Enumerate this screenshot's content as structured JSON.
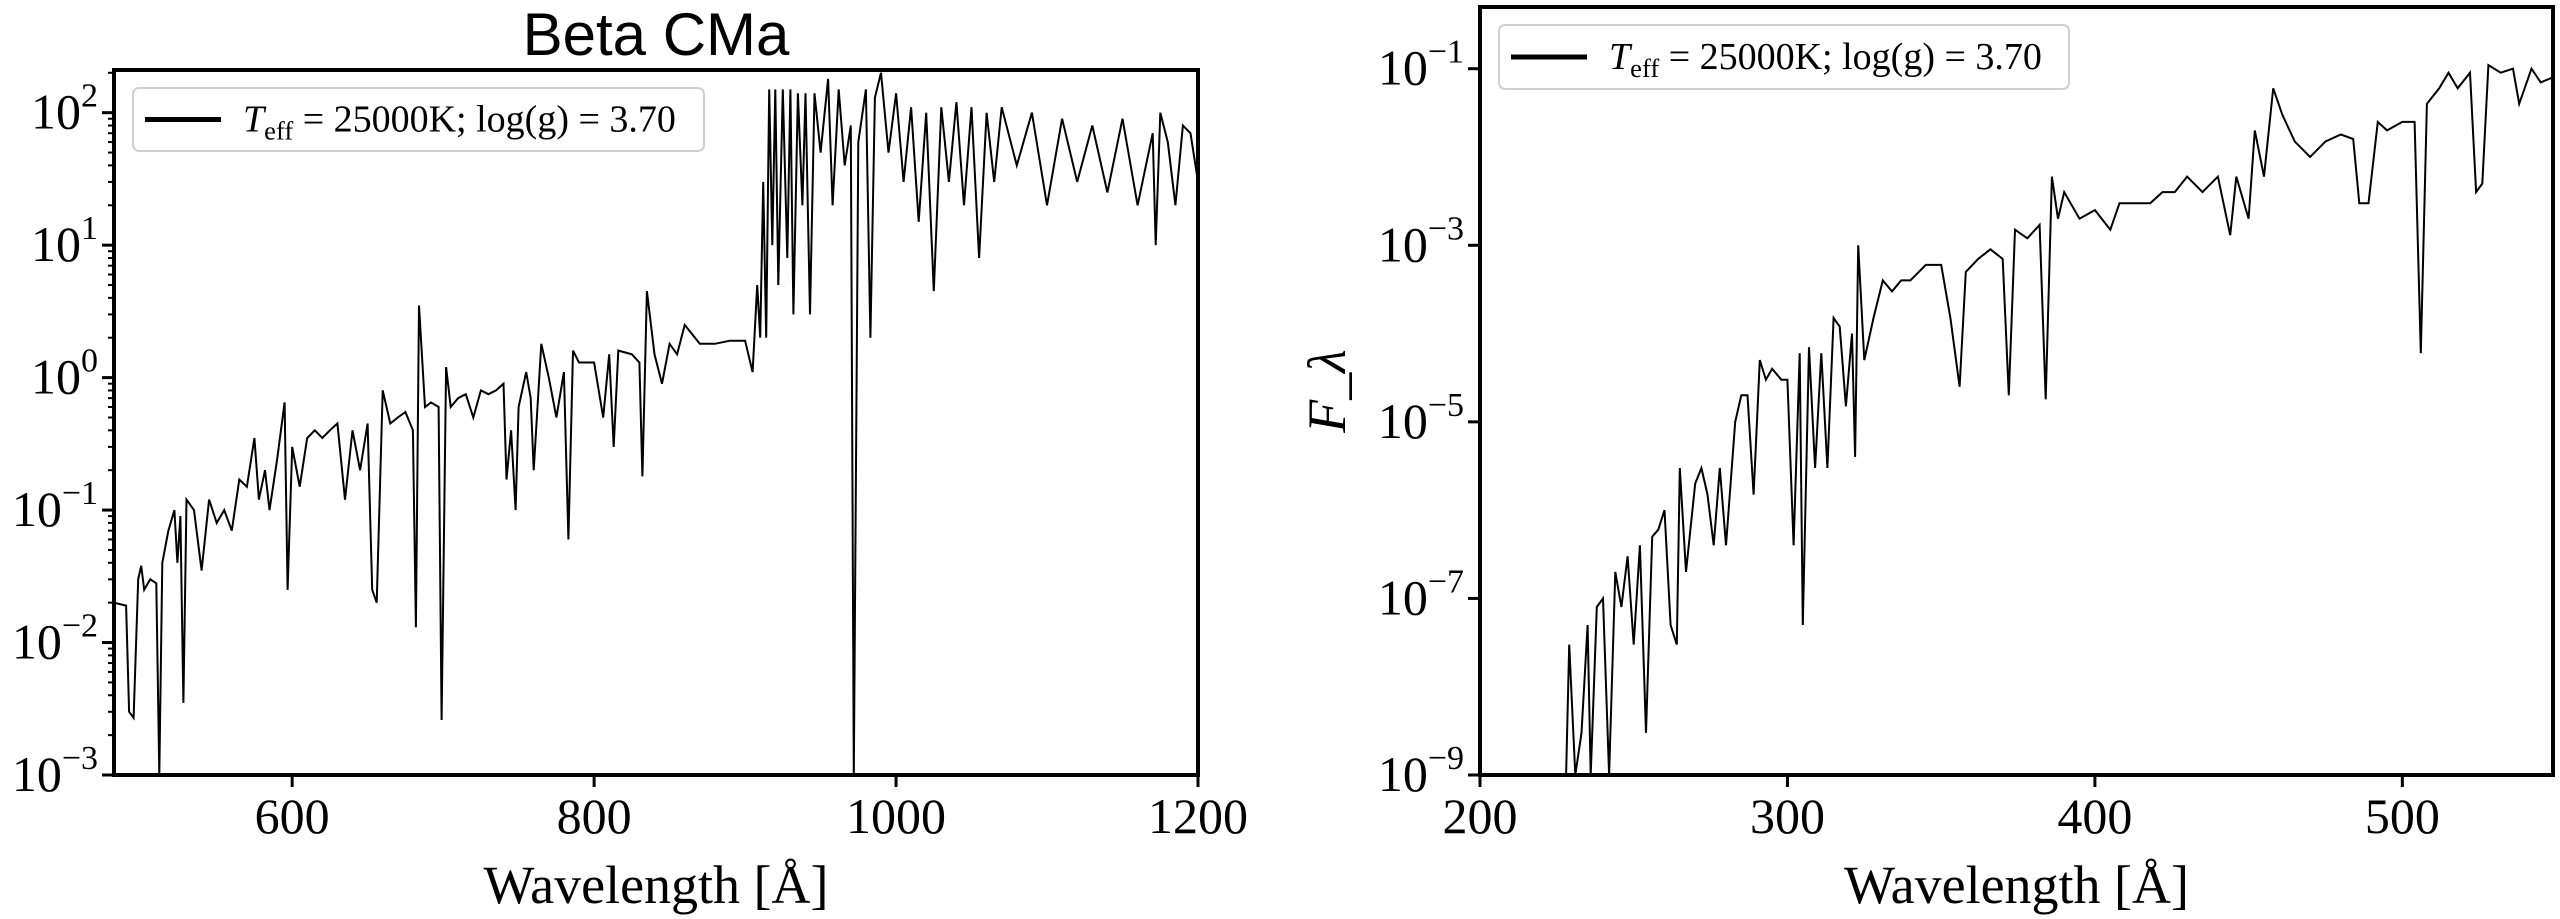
{
  "chart_data": [
    {
      "type": "line",
      "title": "Beta CMa",
      "xlabel": "Wavelength [Å]",
      "ylabel": "",
      "xscale": "linear",
      "yscale": "log",
      "xlim": [
        482,
        1200
      ],
      "ylim": [
        0.001,
        210
      ],
      "xticks": [
        600,
        800,
        1000,
        1200
      ],
      "yticks_exponents": [
        -3,
        -2,
        -1,
        0,
        1,
        2
      ],
      "grid": false,
      "legend_placement": "upper-left",
      "line_color": "#000000",
      "series": [
        {
          "name": "T_eff = 25000K;  log(g) = 3.70",
          "x": [
            482,
            490,
            492,
            495,
            498,
            500,
            502,
            506,
            510,
            512,
            514,
            518,
            522,
            524,
            526,
            528,
            530,
            535,
            540,
            545,
            550,
            555,
            560,
            565,
            570,
            575,
            578,
            582,
            585,
            590,
            595,
            597,
            600,
            605,
            610,
            615,
            620,
            625,
            630,
            635,
            640,
            645,
            650,
            653,
            656,
            660,
            665,
            670,
            675,
            680,
            682,
            684,
            688,
            692,
            697,
            699,
            702,
            705,
            710,
            715,
            720,
            725,
            730,
            735,
            740,
            742,
            745,
            748,
            750,
            755,
            758,
            760,
            765,
            770,
            775,
            780,
            783,
            786,
            790,
            800,
            806,
            810,
            813,
            816,
            825,
            830,
            832,
            835,
            840,
            845,
            850,
            855,
            860,
            870,
            880,
            890,
            900,
            905,
            908,
            910,
            912,
            914,
            916,
            918,
            920,
            922,
            925,
            928,
            930,
            932,
            935,
            938,
            940,
            943,
            946,
            950,
            955,
            958,
            962,
            966,
            970,
            972,
            975,
            980,
            983,
            986,
            990,
            995,
            1000,
            1005,
            1010,
            1015,
            1020,
            1025,
            1030,
            1035,
            1040,
            1045,
            1050,
            1055,
            1060,
            1065,
            1070,
            1080,
            1090,
            1100,
            1110,
            1120,
            1130,
            1140,
            1150,
            1160,
            1170,
            1172,
            1175,
            1180,
            1185,
            1190,
            1195,
            1200
          ],
          "y": [
            0.02,
            0.019,
            0.003,
            0.0027,
            0.03,
            0.038,
            0.025,
            0.03,
            0.028,
            0.001,
            0.04,
            0.07,
            0.1,
            0.04,
            0.09,
            0.0035,
            0.12,
            0.1,
            0.035,
            0.12,
            0.08,
            0.1,
            0.07,
            0.17,
            0.15,
            0.35,
            0.12,
            0.2,
            0.1,
            0.24,
            0.65,
            0.025,
            0.3,
            0.15,
            0.35,
            0.4,
            0.35,
            0.4,
            0.45,
            0.12,
            0.4,
            0.2,
            0.45,
            0.025,
            0.02,
            0.8,
            0.45,
            0.5,
            0.55,
            0.4,
            0.013,
            3.5,
            0.6,
            0.65,
            0.6,
            0.0026,
            1.2,
            0.6,
            0.7,
            0.75,
            0.5,
            0.8,
            0.75,
            0.8,
            0.9,
            0.17,
            0.4,
            0.1,
            0.6,
            1.1,
            0.7,
            0.2,
            1.8,
            1.0,
            0.5,
            1.1,
            0.06,
            1.6,
            1.3,
            1.3,
            0.5,
            1.5,
            0.3,
            1.6,
            1.5,
            1.3,
            0.18,
            4.5,
            1.5,
            0.9,
            1.8,
            1.5,
            2.5,
            1.8,
            1.8,
            1.9,
            1.9,
            1.1,
            5,
            2,
            30,
            2,
            150,
            10,
            150,
            5,
            150,
            8,
            150,
            3,
            140,
            20,
            140,
            3,
            140,
            50,
            180,
            20,
            150,
            40,
            80,
            0.001,
            60,
            150,
            2,
            130,
            200,
            50,
            140,
            30,
            110,
            15,
            100,
            4.5,
            110,
            30,
            120,
            20,
            110,
            8,
            100,
            30,
            110,
            40,
            100,
            20,
            90,
            30,
            80,
            25,
            90,
            20,
            70,
            10,
            100,
            60,
            20,
            80,
            70,
            30
          ]
        }
      ]
    },
    {
      "type": "line",
      "title": "",
      "xlabel": "Wavelength [Å]",
      "ylabel": "F_λ",
      "xscale": "linear",
      "yscale": "log",
      "xlim": [
        200,
        549
      ],
      "ylim": [
        1e-09,
        0.5
      ],
      "xticks": [
        200,
        300,
        400,
        500
      ],
      "yticks_exponents": [
        -9,
        -7,
        -5,
        -3,
        -1
      ],
      "grid": false,
      "legend_placement": "upper-left",
      "line_color": "#000000",
      "series": [
        {
          "name": "T_eff = 25000K;  log(g) = 3.70",
          "x": [
            228,
            229,
            231,
            233,
            235,
            236,
            238,
            240,
            242,
            244,
            246,
            248,
            250,
            252,
            254,
            256,
            258,
            260,
            262,
            264,
            265,
            267,
            270,
            272,
            274,
            276,
            278,
            280,
            283,
            285,
            287,
            289,
            291,
            293,
            295,
            298,
            300,
            302,
            304,
            305,
            307,
            309,
            311,
            313,
            315,
            317,
            319,
            321,
            322,
            323,
            325,
            328,
            331,
            334,
            337,
            340,
            345,
            350,
            353,
            356,
            358,
            362,
            366,
            370,
            372,
            374,
            378,
            382,
            384,
            386,
            388,
            390,
            395,
            400,
            405,
            408,
            412,
            418,
            422,
            426,
            430,
            435,
            440,
            444,
            446,
            450,
            452,
            455,
            458,
            461,
            465,
            470,
            475,
            480,
            484,
            486,
            489,
            492,
            495,
            500,
            504,
            506,
            508,
            512,
            515,
            518,
            522,
            524,
            526,
            528,
            532,
            536,
            538,
            542,
            545,
            549
          ],
          "y": [
            1e-09,
            3e-08,
            1e-09,
            3e-09,
            5e-08,
            1e-09,
            8e-08,
            1e-07,
            1e-09,
            2e-07,
            8e-08,
            3e-07,
            3e-08,
            4e-07,
            3e-09,
            5e-07,
            6e-07,
            1e-06,
            5e-08,
            3e-08,
            3e-06,
            2e-07,
            2e-06,
            3e-06,
            1.5e-06,
            4e-07,
            3e-06,
            4e-07,
            1e-05,
            2e-05,
            2e-05,
            1.5e-06,
            5e-05,
            3e-05,
            4e-05,
            3e-05,
            3e-05,
            4e-07,
            6e-05,
            5e-08,
            7e-05,
            3e-06,
            6e-05,
            3e-06,
            0.00015,
            0.00012,
            1.5e-05,
            0.0001,
            4e-06,
            0.001,
            5e-05,
            0.00015,
            0.0004,
            0.0003,
            0.0004,
            0.0004,
            0.0006,
            0.0006,
            0.00015,
            2.5e-05,
            0.0005,
            0.0007,
            0.0009,
            0.0007,
            2e-05,
            0.0015,
            0.0012,
            0.0017,
            1.8e-05,
            0.006,
            0.002,
            0.004,
            0.002,
            0.0025,
            0.0015,
            0.003,
            0.003,
            0.003,
            0.004,
            0.004,
            0.006,
            0.004,
            0.006,
            0.0013,
            0.006,
            0.002,
            0.02,
            0.006,
            0.06,
            0.03,
            0.015,
            0.01,
            0.015,
            0.018,
            0.016,
            0.003,
            0.003,
            0.025,
            0.02,
            0.025,
            0.025,
            6e-05,
            0.04,
            0.06,
            0.09,
            0.06,
            0.09,
            0.004,
            0.005,
            0.11,
            0.09,
            0.1,
            0.04,
            0.1,
            0.07,
            0.08
          ]
        }
      ]
    }
  ]
}
